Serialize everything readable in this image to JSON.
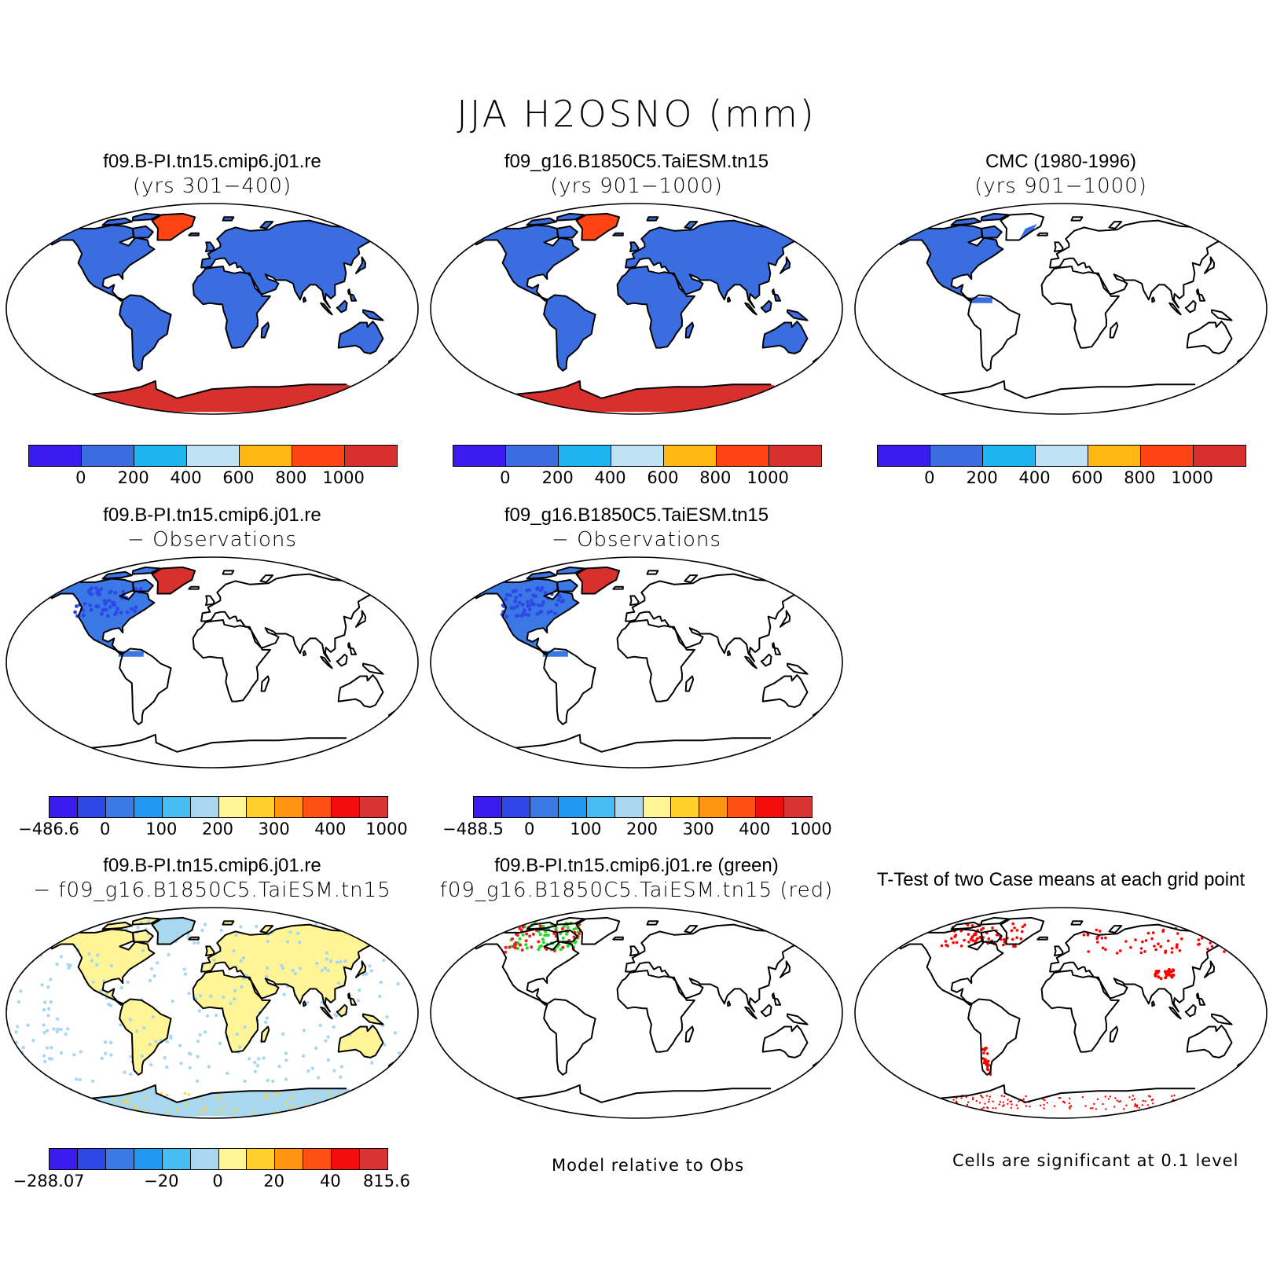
{
  "title": "JJA H2OSNO (mm)",
  "panels": [
    {
      "id": "p1",
      "title1": "f09.B-PI.tn15.cmip6.j01.re",
      "title2": "(yrs 301−400)",
      "fill": "global"
    },
    {
      "id": "p2",
      "title1": "f09_g16.B1850C5.TaiESM.tn15",
      "title2": "(yrs 901−1000)",
      "fill": "global"
    },
    {
      "id": "p3",
      "title1": "CMC (1980-1996)",
      "title2": "(yrs 901−1000)",
      "fill": "na_only"
    },
    {
      "id": "p4",
      "title1": "f09.B-PI.tn15.cmip6.j01.re",
      "title2": "− Observations",
      "fill": "diff_obs"
    },
    {
      "id": "p5",
      "title1": "f09_g16.B1850C5.TaiESM.tn15",
      "title2": "− Observations",
      "fill": "diff_obs"
    },
    {
      "id": "p6",
      "title1": "f09.B-PI.tn15.cmip6.j01.re",
      "title2": "− f09_g16.B1850C5.TaiESM.tn15",
      "fill": "diff_models"
    },
    {
      "id": "p7",
      "title1": "f09.B-PI.tn15.cmip6.j01.re (green)",
      "title2": "f09_g16.B1850C5.TaiESM.tn15 (red)",
      "fill": "dots"
    },
    {
      "id": "p8",
      "title1": "T-Test of two Case means at each grid point",
      "title2": "",
      "fill": "ttest"
    }
  ],
  "colorbars": {
    "abs": {
      "colors": [
        "#3a1cf0",
        "#3a6ee0",
        "#1eb4f0",
        "#bfe2f5",
        "#ffb814",
        "#ff4414",
        "#d8302c"
      ],
      "labels": [
        "0",
        "200",
        "400",
        "600",
        "800",
        "1000"
      ]
    },
    "diff_obs_1": {
      "colors": [
        "#3a1cf0",
        "#2e48e8",
        "#3a78e6",
        "#1e98f0",
        "#46bcf0",
        "#a8d8f0",
        "#fff596",
        "#ffd02c",
        "#ff9410",
        "#ff5014",
        "#f40c0c",
        "#d83434"
      ],
      "labels": [
        "−486.6",
        "0",
        "100",
        "200",
        "300",
        "400",
        "1000"
      ]
    },
    "diff_obs_2": {
      "colors": [
        "#3a1cf0",
        "#2e48e8",
        "#3a78e6",
        "#1e98f0",
        "#46bcf0",
        "#a8d8f0",
        "#fff596",
        "#ffd02c",
        "#ff9410",
        "#ff5014",
        "#f40c0c",
        "#d83434"
      ],
      "labels": [
        "−488.5",
        "0",
        "100",
        "200",
        "300",
        "400",
        "1000"
      ]
    },
    "diff_models": {
      "colors": [
        "#3a1cf0",
        "#2e48e8",
        "#3a78e6",
        "#1e98f0",
        "#46bcf0",
        "#a8d8f0",
        "#fff596",
        "#ffd02c",
        "#ff9410",
        "#ff5014",
        "#f40c0c",
        "#d83434"
      ],
      "labels": [
        "−288.07",
        "−20",
        "0",
        "20",
        "40",
        "815.6"
      ]
    }
  },
  "notes": {
    "model_obs": "Model relative to Obs",
    "significance": "Cells are significant at 0.1 level"
  }
}
